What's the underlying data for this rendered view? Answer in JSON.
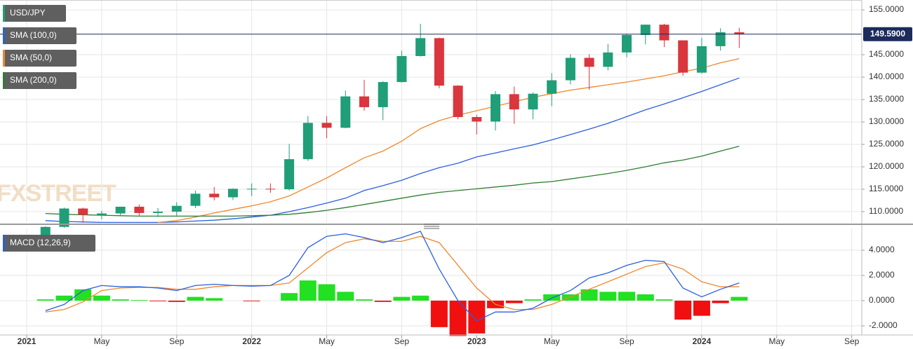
{
  "chart_data": [
    {
      "type": "candlestick",
      "title": "USD/JPY",
      "x": [
        "2021-02",
        "2021-03",
        "2021-04",
        "2021-05",
        "2021-06",
        "2021-07",
        "2021-08",
        "2021-09",
        "2021-10",
        "2021-11",
        "2021-12",
        "2022-01",
        "2022-02",
        "2022-03",
        "2022-04",
        "2022-05",
        "2022-06",
        "2022-07",
        "2022-08",
        "2022-09",
        "2022-10",
        "2022-11",
        "2022-12",
        "2023-01",
        "2023-02",
        "2023-03",
        "2023-04",
        "2023-05",
        "2023-06",
        "2023-07",
        "2023-08",
        "2023-09",
        "2023-10",
        "2023-11",
        "2023-12",
        "2024-01",
        "2024-02",
        "2024-03"
      ],
      "open": [
        104.7,
        106.6,
        110.7,
        109.3,
        109.6,
        111.1,
        109.7,
        110.0,
        111.3,
        114.0,
        113.2,
        115.1,
        115.1,
        115.0,
        121.7,
        129.8,
        128.7,
        135.7,
        133.3,
        138.9,
        144.7,
        148.7,
        138.1,
        131.1,
        130.1,
        136.2,
        132.8,
        136.3,
        139.3,
        144.3,
        142.3,
        145.5,
        149.4,
        151.7,
        148.2,
        141.0,
        146.9,
        150.0
      ],
      "high": [
        106.7,
        110.9,
        110.9,
        110.2,
        111.1,
        111.6,
        110.8,
        112.1,
        114.7,
        115.5,
        115.2,
        116.3,
        116.3,
        125.1,
        131.3,
        131.3,
        137.0,
        139.4,
        139.1,
        145.9,
        151.9,
        148.8,
        138.2,
        131.6,
        136.9,
        137.9,
        136.6,
        140.9,
        145.1,
        145.1,
        147.4,
        149.7,
        151.7,
        151.9,
        148.2,
        148.8,
        150.9,
        151.0
      ],
      "low": [
        104.4,
        106.4,
        107.5,
        108.3,
        109.2,
        109.1,
        108.8,
        109.1,
        110.8,
        112.5,
        112.6,
        113.5,
        114.2,
        114.7,
        121.3,
        126.4,
        128.6,
        132.5,
        130.4,
        138.8,
        144.6,
        137.5,
        130.6,
        127.2,
        128.1,
        129.6,
        130.6,
        133.5,
        138.4,
        137.2,
        141.5,
        144.4,
        147.3,
        146.7,
        140.3,
        140.8,
        145.9,
        146.5
      ],
      "close": [
        106.6,
        110.7,
        109.3,
        109.6,
        111.1,
        109.7,
        110.0,
        111.3,
        114.0,
        113.2,
        115.1,
        115.1,
        115.0,
        121.7,
        129.8,
        128.7,
        135.7,
        133.3,
        138.9,
        144.7,
        148.7,
        138.1,
        131.1,
        130.1,
        136.2,
        132.8,
        136.3,
        139.3,
        144.3,
        142.3,
        145.5,
        149.4,
        151.7,
        148.2,
        141.0,
        146.9,
        150.0,
        149.6
      ],
      "up_color": "#1f9e78",
      "down_color": "#d9363e",
      "series": [
        {
          "name": "SMA (100,0)",
          "color": "#2b5fdc",
          "values": [
            108.0,
            107.8,
            107.7,
            107.6,
            107.6,
            107.6,
            107.6,
            107.7,
            107.9,
            108.1,
            108.4,
            108.8,
            109.2,
            110.0,
            110.9,
            111.9,
            113.0,
            114.7,
            115.8,
            117.0,
            118.5,
            119.8,
            120.8,
            122.2,
            123.1,
            124.0,
            124.9,
            126.0,
            127.2,
            128.4,
            129.7,
            131.2,
            132.7,
            134.0,
            135.4,
            136.8,
            138.3,
            139.8
          ]
        },
        {
          "name": "SMA (50,0)",
          "color": "#f0872c",
          "values": [
            null,
            null,
            null,
            null,
            null,
            null,
            107.6,
            108.0,
            108.8,
            109.7,
            110.5,
            111.3,
            112.2,
            113.5,
            115.5,
            117.5,
            119.8,
            122.0,
            123.5,
            125.7,
            128.5,
            130.3,
            131.5,
            132.5,
            133.5,
            134.5,
            135.5,
            136.3,
            137.1,
            137.7,
            138.3,
            138.9,
            139.6,
            140.3,
            141.2,
            142.0,
            143.2,
            144.1
          ]
        },
        {
          "name": "SMA (200,0)",
          "color": "#2e7d32",
          "values": [
            109.6,
            109.4,
            109.3,
            109.2,
            109.1,
            109.0,
            109.0,
            109.0,
            109.0,
            109.0,
            109.0,
            109.1,
            109.2,
            109.4,
            109.8,
            110.3,
            110.9,
            111.6,
            112.3,
            113.0,
            113.7,
            114.3,
            114.7,
            115.1,
            115.5,
            115.9,
            116.4,
            116.7,
            117.3,
            117.9,
            118.5,
            119.2,
            120.0,
            120.9,
            121.5,
            122.4,
            123.5,
            124.6
          ]
        }
      ],
      "last_price": {
        "value": 149.59,
        "label": "149.5900"
      },
      "watermark": "FXSTREET",
      "ylim": [
        107.5,
        157.2
      ],
      "yticks": [
        {
          "value": 110,
          "label": "110.0000"
        },
        {
          "value": 115,
          "label": "115.0000"
        },
        {
          "value": 120,
          "label": "120.0000"
        },
        {
          "value": 125,
          "label": "125.0000"
        },
        {
          "value": 130,
          "label": "130.0000"
        },
        {
          "value": 135,
          "label": "135.0000"
        },
        {
          "value": 140,
          "label": "140.0000"
        },
        {
          "value": 145,
          "label": "145.0000"
        },
        {
          "value": 155,
          "label": "155.0000"
        }
      ],
      "xlim": [
        "2020-11",
        "2024-10"
      ],
      "xticks": [
        {
          "value": "2021-01",
          "label": "2021"
        },
        {
          "value": "2021-05",
          "label": "May"
        },
        {
          "value": "2021-09",
          "label": "Sep"
        },
        {
          "value": "2022-01",
          "label": "2022"
        },
        {
          "value": "2022-05",
          "label": "May"
        },
        {
          "value": "2022-09",
          "label": "Sep"
        },
        {
          "value": "2023-01",
          "label": "2023"
        },
        {
          "value": "2023-05",
          "label": "May"
        },
        {
          "value": "2023-09",
          "label": "Sep"
        },
        {
          "value": "2024-01",
          "label": "2024"
        },
        {
          "value": "2024-05",
          "label": "May"
        },
        {
          "value": "2024-09",
          "label": "Sep"
        }
      ],
      "grid": true
    },
    {
      "type": "macd",
      "title": "MACD (12,26,9)",
      "macd": {
        "color": "#2b5fdc",
        "values": [
          -0.8,
          -0.3,
          0.8,
          1.2,
          1.1,
          1.1,
          1.0,
          0.8,
          1.2,
          1.3,
          1.2,
          1.15,
          1.2,
          2.0,
          4.2,
          5.1,
          5.3,
          5.0,
          4.6,
          5.0,
          5.5,
          2.5,
          0.0,
          -1.6,
          -0.9,
          -0.9,
          -0.6,
          0.2,
          0.8,
          1.8,
          2.2,
          2.8,
          3.2,
          3.1,
          1.0,
          0.3,
          0.9,
          1.4
        ]
      },
      "signal": {
        "color": "#f0872c",
        "values": [
          -0.9,
          -0.7,
          -0.1,
          0.8,
          1.0,
          1.05,
          1.05,
          0.9,
          0.9,
          1.1,
          1.2,
          1.2,
          1.2,
          1.4,
          2.6,
          3.8,
          4.6,
          4.9,
          4.7,
          4.7,
          5.1,
          4.6,
          2.8,
          1.0,
          -0.3,
          -0.7,
          -0.7,
          -0.3,
          0.3,
          0.9,
          1.5,
          2.1,
          2.7,
          3.0,
          2.5,
          1.5,
          1.1,
          1.1
        ]
      },
      "histogram": {
        "up_color": "#22e022",
        "down_color": "#f01010",
        "values": [
          0.1,
          0.4,
          0.9,
          0.4,
          0.1,
          0.05,
          -0.05,
          -0.1,
          0.3,
          0.2,
          0.0,
          -0.05,
          0.0,
          0.6,
          1.6,
          1.3,
          0.7,
          0.1,
          -0.1,
          0.3,
          0.4,
          -2.1,
          -2.8,
          -2.6,
          -0.6,
          -0.2,
          0.1,
          0.5,
          0.5,
          0.9,
          0.7,
          0.7,
          0.5,
          0.1,
          -1.5,
          -1.2,
          -0.2,
          0.3
        ]
      },
      "ylim": [
        -2.72,
        5.72
      ],
      "yticks": [
        {
          "value": -2,
          "label": "-2.0000"
        },
        {
          "value": 0,
          "label": "0.0000"
        },
        {
          "value": 2,
          "label": "2.0000"
        },
        {
          "value": 4,
          "label": "4.0000"
        }
      ],
      "grid": true
    }
  ]
}
